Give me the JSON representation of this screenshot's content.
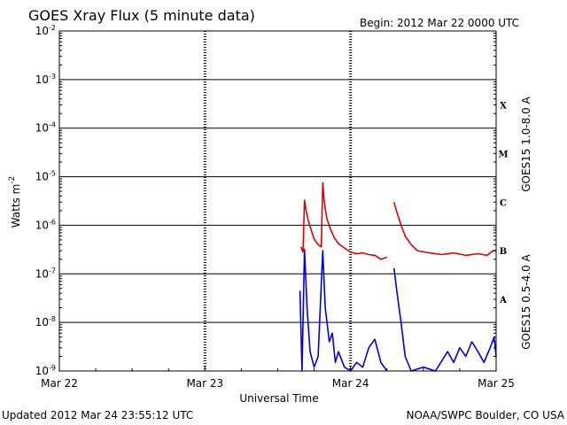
{
  "header": {
    "title": "GOES Xray Flux (5 minute data)",
    "begin": "Begin:  2012 Mar 22 0000 UTC"
  },
  "footer": {
    "updated": "Updated 2012 Mar 24 23:55:12 UTC",
    "source": "NOAA/SWPC Boulder, CO USA"
  },
  "chart_data": {
    "type": "line",
    "title": "GOES Xray Flux (5 minute data)",
    "xlabel": "Universal Time",
    "ylabel": "Watts m",
    "ylabel_sup": "-2",
    "yscale": "log",
    "ylim": [
      1e-09,
      0.01
    ],
    "xlim": [
      "2012-03-22T00:00",
      "2012-03-25T00:00"
    ],
    "x_ticks": [
      "Mar 22",
      "Mar 23",
      "Mar 24",
      "Mar 25"
    ],
    "y_ticks": [
      {
        "base": "10",
        "exp": "-9",
        "value": 1e-09
      },
      {
        "base": "10",
        "exp": "-8",
        "value": 1e-08
      },
      {
        "base": "10",
        "exp": "-7",
        "value": 1e-07
      },
      {
        "base": "10",
        "exp": "-6",
        "value": 1e-06
      },
      {
        "base": "10",
        "exp": "-5",
        "value": 1e-05
      },
      {
        "base": "10",
        "exp": "-4",
        "value": 0.0001
      },
      {
        "base": "10",
        "exp": "-3",
        "value": 0.001
      },
      {
        "base": "10",
        "exp": "-2",
        "value": 0.01
      }
    ],
    "flare_classes": [
      {
        "label": "A",
        "value": 3e-08
      },
      {
        "label": "B",
        "value": 3e-07
      },
      {
        "label": "C",
        "value": 3e-06
      },
      {
        "label": "M",
        "value": 3e-05
      },
      {
        "label": "X",
        "value": 0.0003
      }
    ],
    "grid": true,
    "legend": "right",
    "series": [
      {
        "name": "GOES15 1.0-8.0 A",
        "color": "#e00000",
        "points": [
          [
            "2012-03-23T15:50",
            3.6e-07
          ],
          [
            "2012-03-23T16:10",
            2.8e-07
          ],
          [
            "2012-03-23T16:25",
            3.3e-06
          ],
          [
            "2012-03-23T16:40",
            2e-06
          ],
          [
            "2012-03-23T17:00",
            1.3e-06
          ],
          [
            "2012-03-23T17:30",
            8e-07
          ],
          [
            "2012-03-23T18:00",
            5.2e-07
          ],
          [
            "2012-03-23T18:40",
            4e-07
          ],
          [
            "2012-03-23T19:10",
            3.6e-07
          ],
          [
            "2012-03-23T19:25",
            7.5e-06
          ],
          [
            "2012-03-23T19:40",
            3e-06
          ],
          [
            "2012-03-23T20:05",
            1.4e-06
          ],
          [
            "2012-03-23T20:40",
            8.5e-07
          ],
          [
            "2012-03-23T21:20",
            5.5e-07
          ],
          [
            "2012-03-23T22:00",
            4.2e-07
          ],
          [
            "2012-03-23T23:00",
            3.4e-07
          ],
          [
            "2012-03-24T00:00",
            2.8e-07
          ],
          [
            "2012-03-24T01:00",
            2.6e-07
          ],
          [
            "2012-03-24T02:00",
            2.7e-07
          ],
          [
            "2012-03-24T03:00",
            2.5e-07
          ],
          [
            "2012-03-24T04:00",
            2.4e-07
          ],
          [
            "2012-03-24T05:00",
            2e-07
          ],
          [
            "2012-03-24T06:00",
            2.2e-07
          ]
        ],
        "points_after_gap": [
          [
            "2012-03-24T07:10",
            3e-06
          ],
          [
            "2012-03-24T07:40",
            1.8e-06
          ],
          [
            "2012-03-24T08:20",
            1e-06
          ],
          [
            "2012-03-24T09:00",
            6e-07
          ],
          [
            "2012-03-24T10:00",
            4e-07
          ],
          [
            "2012-03-24T11:00",
            3e-07
          ],
          [
            "2012-03-24T13:00",
            2.7e-07
          ],
          [
            "2012-03-24T15:00",
            2.5e-07
          ],
          [
            "2012-03-24T17:00",
            2.7e-07
          ],
          [
            "2012-03-24T19:00",
            2.4e-07
          ],
          [
            "2012-03-24T21:00",
            2.6e-07
          ],
          [
            "2012-03-24T22:30",
            2.4e-07
          ],
          [
            "2012-03-24T23:30",
            3e-07
          ],
          [
            "2012-03-25T00:00",
            3e-07
          ]
        ]
      },
      {
        "name": "GOES15 0.5-4.0 A",
        "color": "#0000e0",
        "points": [
          [
            "2012-03-23T15:40",
            4.5e-08
          ],
          [
            "2012-03-23T16:00",
            1e-09
          ],
          [
            "2012-03-23T16:25",
            3.2e-07
          ],
          [
            "2012-03-23T16:50",
            2e-08
          ],
          [
            "2012-03-23T17:20",
            2.5e-09
          ],
          [
            "2012-03-23T18:00",
            1.2e-09
          ],
          [
            "2012-03-23T18:40",
            2e-09
          ],
          [
            "2012-03-23T19:25",
            3e-07
          ],
          [
            "2012-03-23T19:50",
            2e-08
          ],
          [
            "2012-03-23T20:30",
            4e-09
          ],
          [
            "2012-03-23T21:00",
            6e-09
          ],
          [
            "2012-03-23T21:30",
            1.5e-09
          ],
          [
            "2012-03-23T22:00",
            2.5e-09
          ],
          [
            "2012-03-23T23:00",
            1.2e-09
          ],
          [
            "2012-03-24T00:00",
            1e-09
          ],
          [
            "2012-03-24T01:00",
            1.5e-09
          ],
          [
            "2012-03-24T02:00",
            1.2e-09
          ],
          [
            "2012-03-24T03:00",
            3e-09
          ],
          [
            "2012-03-24T04:00",
            4.5e-09
          ],
          [
            "2012-03-24T05:00",
            1.5e-09
          ],
          [
            "2012-03-24T06:00",
            1e-09
          ]
        ],
        "points_after_gap": [
          [
            "2012-03-24T07:10",
            1.3e-07
          ],
          [
            "2012-03-24T07:40",
            4e-08
          ],
          [
            "2012-03-24T08:20",
            1e-08
          ],
          [
            "2012-03-24T09:00",
            2e-09
          ],
          [
            "2012-03-24T10:00",
            1e-09
          ],
          [
            "2012-03-24T12:00",
            1.2e-09
          ],
          [
            "2012-03-24T14:00",
            1e-09
          ],
          [
            "2012-03-24T16:00",
            2.5e-09
          ],
          [
            "2012-03-24T17:00",
            1.5e-09
          ],
          [
            "2012-03-24T18:00",
            3e-09
          ],
          [
            "2012-03-24T19:00",
            2e-09
          ],
          [
            "2012-03-24T20:00",
            4e-09
          ],
          [
            "2012-03-24T21:00",
            2.5e-09
          ],
          [
            "2012-03-24T22:00",
            1.5e-09
          ],
          [
            "2012-03-24T23:00",
            3e-09
          ],
          [
            "2012-03-24T23:40",
            5e-09
          ],
          [
            "2012-03-25T00:00",
            2e-09
          ]
        ]
      }
    ]
  }
}
